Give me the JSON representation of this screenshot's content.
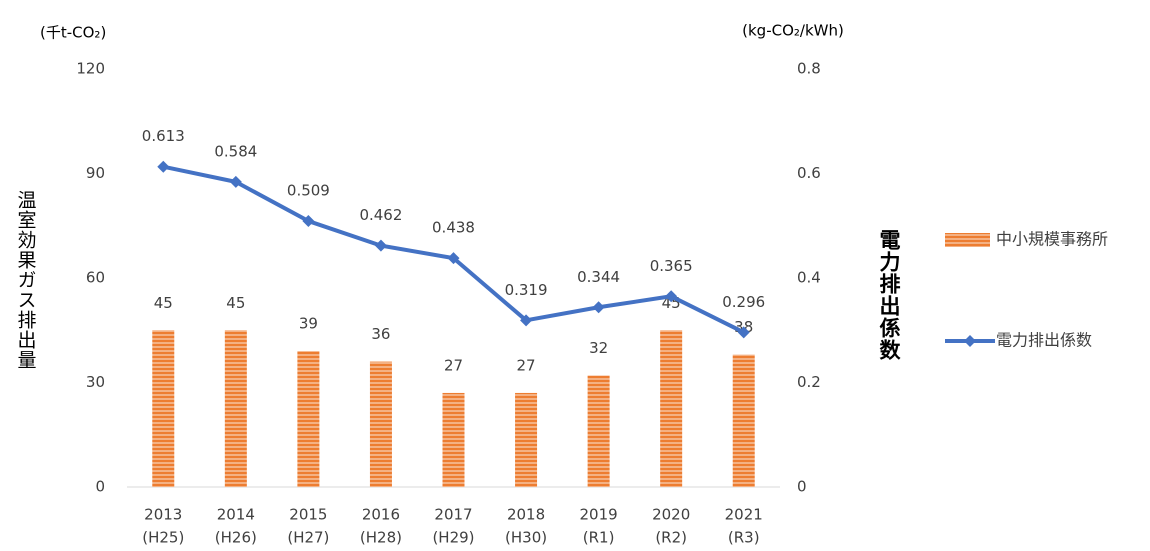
{
  "chart_data": {
    "type": "bar",
    "y_unit": "(千t-CO₂)",
    "y2_unit": "(kg-CO₂/kWh)",
    "y_label": "温室効果ガス排出量",
    "y2_label": "電力排出係数",
    "categories": [
      [
        "2013",
        "(H25)"
      ],
      [
        "2014",
        "(H26)"
      ],
      [
        "2015",
        "(H27)"
      ],
      [
        "2016",
        "(H28)"
      ],
      [
        "2017",
        "(H29)"
      ],
      [
        "2018",
        "(H30)"
      ],
      [
        "2019",
        "(R1)"
      ],
      [
        "2020",
        "(R2)"
      ],
      [
        "2021",
        "(R3)"
      ]
    ],
    "series": [
      {
        "name": "中小規模事務所",
        "type": "bar",
        "color": "#f4b183",
        "stripe": "#ed7d31",
        "values": [
          45,
          45,
          39,
          36,
          27,
          27,
          32,
          45,
          38
        ]
      },
      {
        "name": "電力排出係数",
        "type": "line",
        "axis": "y2",
        "color": "#4472c4",
        "values": [
          0.613,
          0.584,
          0.509,
          0.462,
          0.438,
          0.319,
          0.344,
          0.365,
          0.296
        ]
      }
    ],
    "ylim": [
      0,
      120
    ],
    "yticks": [
      0,
      30,
      60,
      90,
      120
    ],
    "y2lim": [
      0,
      0.8
    ],
    "y2ticks": [
      0,
      0.2,
      0.4,
      0.6,
      0.8
    ],
    "legend": "right"
  }
}
